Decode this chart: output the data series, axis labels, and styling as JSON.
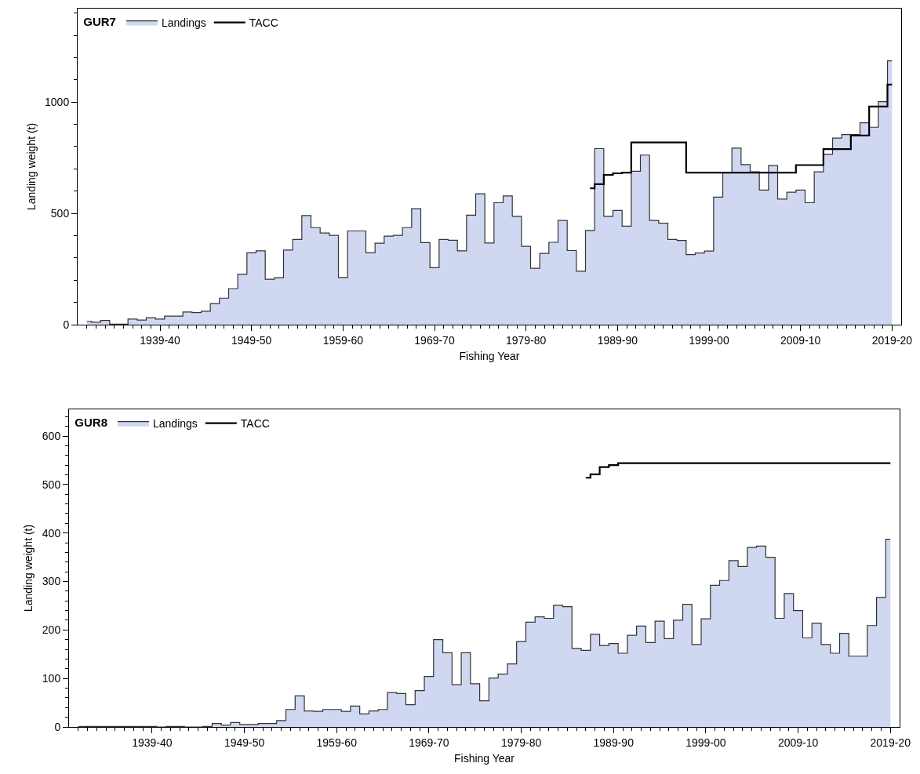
{
  "chart_data": [
    {
      "type": "step",
      "legend_title": "GUR7",
      "xlabel": "Fishing Year",
      "ylabel": "Landing weight (t)",
      "legend": "top left",
      "grid": false,
      "categories": [
        null,
        null,
        null,
        null,
        null,
        null,
        null,
        null,
        "1939-40",
        null,
        null,
        null,
        null,
        null,
        null,
        null,
        null,
        null,
        "1949-50",
        null,
        null,
        null,
        null,
        null,
        null,
        null,
        null,
        null,
        "1959-60",
        null,
        null,
        null,
        null,
        null,
        null,
        null,
        null,
        null,
        "1969-70",
        null,
        null,
        null,
        null,
        null,
        null,
        null,
        null,
        null,
        "1979-80",
        null,
        null,
        null,
        null,
        null,
        null,
        null,
        null,
        null,
        "1989-90",
        null,
        null,
        null,
        null,
        null,
        null,
        null,
        null,
        null,
        "1999-00",
        null,
        null,
        null,
        null,
        null,
        null,
        null,
        null,
        null,
        "2009-10",
        null,
        null,
        null,
        null,
        null,
        null,
        null,
        null,
        null,
        "2019-20"
      ],
      "ylim": [
        0,
        1420
      ],
      "yticks": [
        0,
        {
          "value": 100,
          "label": null
        },
        {
          "value": 200,
          "label": null
        },
        {
          "value": 300,
          "label": null
        },
        {
          "value": 400,
          "label": null
        },
        500,
        {
          "value": 600,
          "label": null
        },
        {
          "value": 700,
          "label": null
        },
        {
          "value": 800,
          "label": null
        },
        {
          "value": 900,
          "label": null
        },
        1000,
        {
          "value": 1100,
          "label": null
        },
        {
          "value": 1200,
          "label": null
        },
        {
          "value": 1300,
          "label": null
        },
        {
          "value": 1400,
          "label": null
        }
      ],
      "series": [
        {
          "name": "Landings",
          "type": "area",
          "color": "#d0d8f1",
          "values": [
            15,
            11,
            19,
            2,
            2,
            25,
            21,
            31,
            25,
            38,
            38,
            57,
            54,
            60,
            95,
            119,
            162,
            227,
            323,
            332,
            204,
            211,
            335,
            383,
            490,
            436,
            412,
            401,
            212,
            421,
            421,
            323,
            366,
            398,
            401,
            436,
            521,
            369,
            256,
            383,
            379,
            332,
            492,
            588,
            367,
            548,
            578,
            487,
            352,
            253,
            320,
            370,
            468,
            333,
            240,
            423,
            791,
            487,
            513,
            443,
            689,
            762,
            468,
            456,
            383,
            378,
            315,
            322,
            331,
            573,
            684,
            793,
            719,
            687,
            605,
            715,
            564,
            595,
            605,
            548,
            687,
            766,
            838,
            854,
            854,
            907,
            887,
            1002,
            1185
          ]
        },
        {
          "name": "TACC",
          "type": "step",
          "color": "#000000",
          "values": [
            null,
            null,
            null,
            null,
            null,
            null,
            null,
            null,
            null,
            null,
            null,
            null,
            null,
            null,
            null,
            null,
            null,
            null,
            null,
            null,
            null,
            null,
            null,
            null,
            null,
            null,
            null,
            null,
            null,
            null,
            null,
            null,
            null,
            null,
            null,
            null,
            null,
            null,
            null,
            null,
            null,
            null,
            null,
            null,
            null,
            null,
            null,
            null,
            null,
            null,
            null,
            null,
            null,
            null,
            null,
            613,
            631,
            673,
            680,
            683,
            819,
            819,
            819,
            819,
            819,
            819,
            683,
            683,
            683,
            683,
            683,
            683,
            683,
            683,
            683,
            683,
            683,
            683,
            717,
            717,
            717,
            789,
            789,
            789,
            850,
            850,
            980,
            980,
            1079
          ]
        }
      ]
    },
    {
      "type": "step",
      "legend_title": "GUR8",
      "xlabel": "Fishing Year",
      "ylabel": "Landing weight (t)",
      "legend": "top left",
      "grid": false,
      "categories": [
        null,
        null,
        null,
        null,
        null,
        null,
        null,
        null,
        "1939-40",
        null,
        null,
        null,
        null,
        null,
        null,
        null,
        null,
        null,
        "1949-50",
        null,
        null,
        null,
        null,
        null,
        null,
        null,
        null,
        null,
        "1959-60",
        null,
        null,
        null,
        null,
        null,
        null,
        null,
        null,
        null,
        "1969-70",
        null,
        null,
        null,
        null,
        null,
        null,
        null,
        null,
        null,
        "1979-80",
        null,
        null,
        null,
        null,
        null,
        null,
        null,
        null,
        null,
        "1989-90",
        null,
        null,
        null,
        null,
        null,
        null,
        null,
        null,
        null,
        "1999-00",
        null,
        null,
        null,
        null,
        null,
        null,
        null,
        null,
        null,
        "2009-10",
        null,
        null,
        null,
        null,
        null,
        null,
        null,
        null,
        null,
        "2019-20"
      ],
      "ylim": [
        0,
        655
      ],
      "yticks": [
        0,
        {
          "value": 20,
          "label": null
        },
        {
          "value": 40,
          "label": null
        },
        {
          "value": 60,
          "label": null
        },
        {
          "value": 80,
          "label": null
        },
        100,
        {
          "value": 120,
          "label": null
        },
        {
          "value": 140,
          "label": null
        },
        {
          "value": 160,
          "label": null
        },
        {
          "value": 180,
          "label": null
        },
        200,
        {
          "value": 220,
          "label": null
        },
        {
          "value": 240,
          "label": null
        },
        {
          "value": 260,
          "label": null
        },
        {
          "value": 280,
          "label": null
        },
        300,
        {
          "value": 320,
          "label": null
        },
        {
          "value": 340,
          "label": null
        },
        {
          "value": 360,
          "label": null
        },
        {
          "value": 380,
          "label": null
        },
        400,
        {
          "value": 420,
          "label": null
        },
        {
          "value": 440,
          "label": null
        },
        {
          "value": 460,
          "label": null
        },
        {
          "value": 480,
          "label": null
        },
        500,
        {
          "value": 520,
          "label": null
        },
        {
          "value": 540,
          "label": null
        },
        {
          "value": 560,
          "label": null
        },
        {
          "value": 580,
          "label": null
        },
        600,
        {
          "value": 620,
          "label": null
        },
        {
          "value": 640,
          "label": null
        }
      ],
      "series": [
        {
          "name": "Landings",
          "type": "area",
          "color": "#d0d8f1",
          "values": [
            1,
            1,
            1,
            1,
            1,
            1,
            1,
            1,
            1,
            0,
            1,
            1,
            0,
            0,
            1,
            7,
            4,
            9,
            5,
            5,
            7,
            7,
            13,
            36,
            64,
            33,
            32,
            36,
            36,
            32,
            43,
            27,
            33,
            36,
            71,
            69,
            46,
            75,
            104,
            180,
            153,
            87,
            153,
            89,
            54,
            101,
            109,
            130,
            176,
            216,
            227,
            224,
            251,
            248,
            162,
            158,
            191,
            168,
            172,
            152,
            189,
            208,
            174,
            218,
            182,
            220,
            253,
            170,
            223,
            292,
            302,
            343,
            331,
            370,
            373,
            350,
            224,
            275,
            240,
            184,
            214,
            170,
            152,
            193,
            146,
            146,
            209,
            267,
            387
          ]
        },
        {
          "name": "TACC",
          "type": "step",
          "color": "#000000",
          "values": [
            null,
            null,
            null,
            null,
            null,
            null,
            null,
            null,
            null,
            null,
            null,
            null,
            null,
            null,
            null,
            null,
            null,
            null,
            null,
            null,
            null,
            null,
            null,
            null,
            null,
            null,
            null,
            null,
            null,
            null,
            null,
            null,
            null,
            null,
            null,
            null,
            null,
            null,
            null,
            null,
            null,
            null,
            null,
            null,
            null,
            null,
            null,
            null,
            null,
            null,
            null,
            null,
            null,
            null,
            null,
            514,
            521,
            536,
            540,
            544,
            544,
            544,
            544,
            544,
            544,
            544,
            544,
            544,
            544,
            544,
            544,
            544,
            544,
            544,
            544,
            544,
            544,
            544,
            544,
            544,
            544,
            544,
            544,
            544,
            544,
            544,
            544,
            544,
            544
          ]
        }
      ]
    }
  ]
}
